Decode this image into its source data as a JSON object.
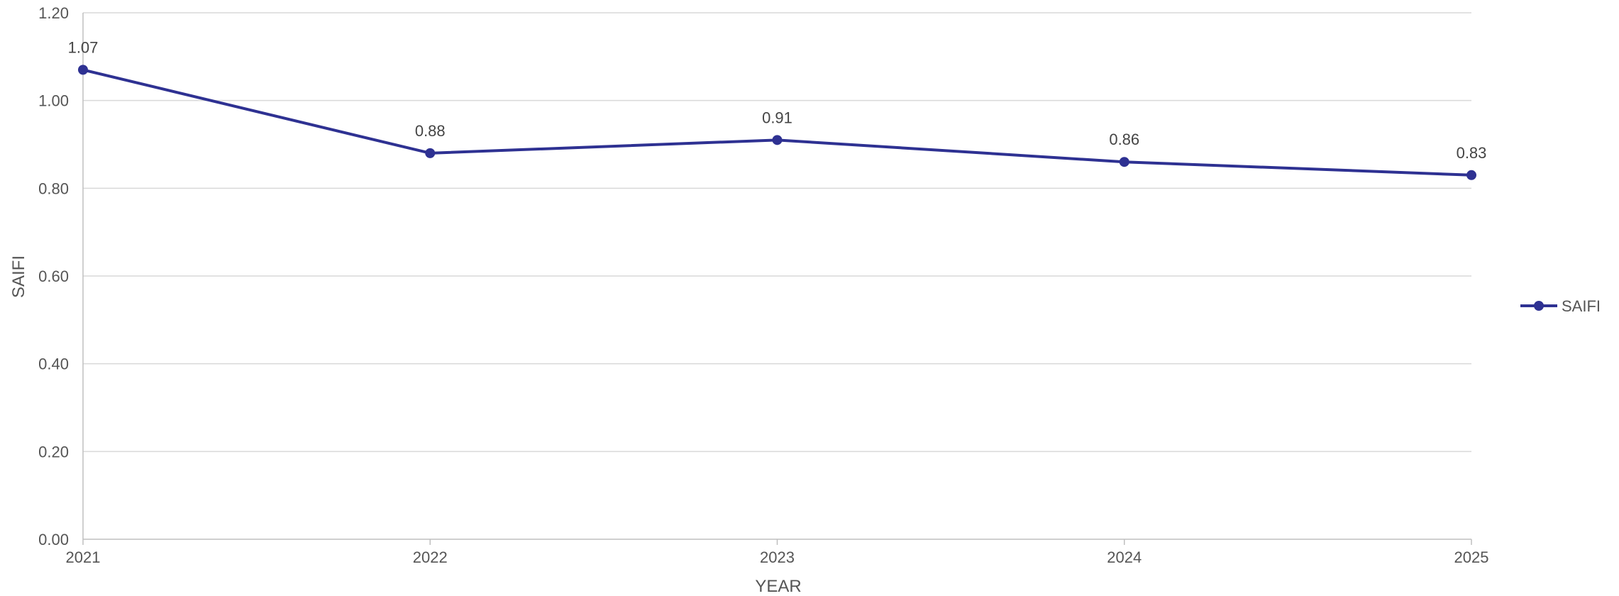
{
  "chart_data": {
    "type": "line",
    "xlabel": "YEAR",
    "ylabel": "SAIFI",
    "x": [
      "2021",
      "2022",
      "2023",
      "2024",
      "2025"
    ],
    "ylim": [
      0,
      1.2
    ],
    "yticks": [
      "0.00",
      "0.20",
      "0.40",
      "0.60",
      "0.80",
      "1.00",
      "1.20"
    ],
    "grid": true,
    "legend": "right",
    "series": [
      {
        "name": "SAIFI",
        "color": "#2e3192",
        "values": [
          1.07,
          0.88,
          0.91,
          0.86,
          0.83
        ],
        "labels": [
          "1.07",
          "0.88",
          "0.91",
          "0.86",
          "0.83"
        ]
      }
    ]
  }
}
